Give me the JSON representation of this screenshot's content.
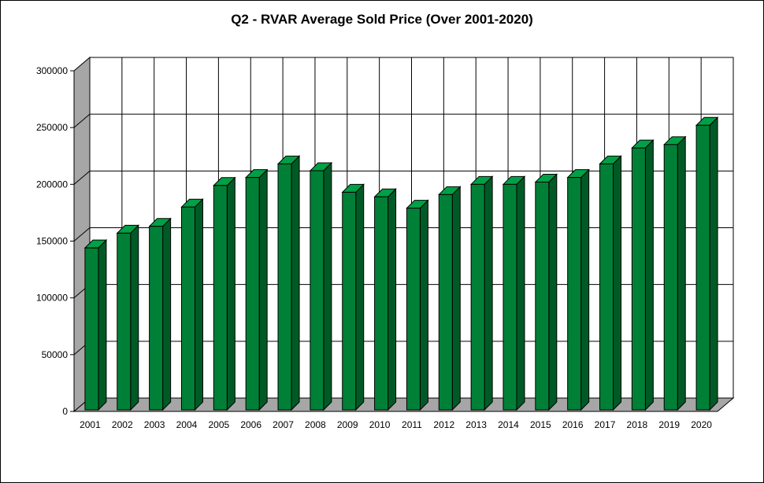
{
  "chart_data": {
    "type": "bar",
    "title": "Q2 - RVAR Average Sold Price (Over 2001-2020)",
    "xlabel": "",
    "ylabel": "",
    "categories": [
      "2001",
      "2002",
      "2003",
      "2004",
      "2005",
      "2006",
      "2007",
      "2008",
      "2009",
      "2010",
      "2011",
      "2012",
      "2013",
      "2014",
      "2015",
      "2016",
      "2017",
      "2018",
      "2019",
      "2020"
    ],
    "values": [
      144000,
      157000,
      163000,
      180000,
      199000,
      206000,
      218000,
      212000,
      193000,
      189000,
      179000,
      191000,
      200000,
      200000,
      202000,
      206000,
      218000,
      232000,
      235000,
      252000
    ],
    "ylim": [
      0,
      300000
    ],
    "yticks": [
      0,
      50000,
      100000,
      150000,
      200000,
      250000,
      300000
    ],
    "ytick_labels": [
      "0",
      "50000",
      "100000",
      "150000",
      "200000",
      "250000",
      "300000"
    ],
    "grid": true,
    "legend": "none",
    "colors": {
      "bar_front": "#008037",
      "bar_side": "#005a26",
      "bar_top": "#00a046",
      "wall": "#a6a6a6",
      "grid": "#000000"
    }
  }
}
